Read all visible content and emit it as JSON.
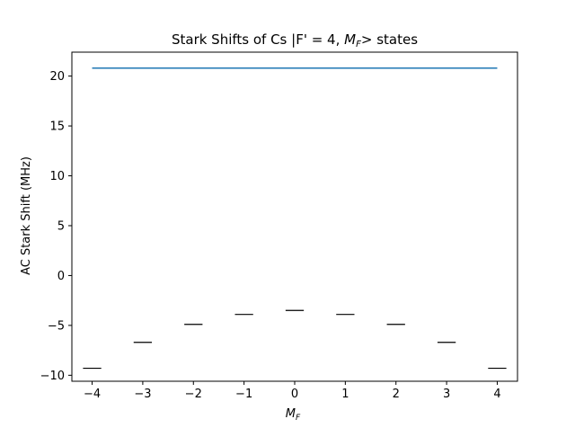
{
  "chart_data": {
    "type": "line",
    "title": "Stark Shifts of Cs |F' = 4, M_F> states",
    "title_parts": {
      "prefix": "Stark Shifts of Cs |F' = 4, ",
      "var": "M",
      "sub": "F",
      "suffix": "> states"
    },
    "xlabel": {
      "var": "M",
      "sub": "F"
    },
    "ylabel": "AC Stark Shift (MHz)",
    "xlim": [
      -4.4,
      4.4
    ],
    "ylim": [
      -10.6,
      22.4
    ],
    "xticks": [
      -4,
      -3,
      -2,
      -1,
      0,
      1,
      2,
      3,
      4
    ],
    "xtick_labels": [
      "−4",
      "−3",
      "−2",
      "−1",
      "0",
      "1",
      "2",
      "3",
      "4"
    ],
    "yticks": [
      -10,
      -5,
      0,
      5,
      10,
      15,
      20
    ],
    "ytick_labels": [
      "−10",
      "−5",
      "0",
      "5",
      "10",
      "15",
      "20"
    ],
    "grid": false,
    "series": [
      {
        "kind": "line",
        "color": "#1f77b4",
        "x": [
          -4,
          4
        ],
        "y": [
          20.8,
          20.8
        ]
      },
      {
        "kind": "level-markers",
        "color": "#000000",
        "marker_half_width": 0.18,
        "x": [
          -4,
          -3,
          -2,
          -1,
          0,
          1,
          2,
          3,
          4
        ],
        "y": [
          -9.3,
          -6.7,
          -4.9,
          -3.9,
          -3.5,
          -3.9,
          -4.9,
          -6.7,
          -9.3
        ]
      }
    ]
  }
}
